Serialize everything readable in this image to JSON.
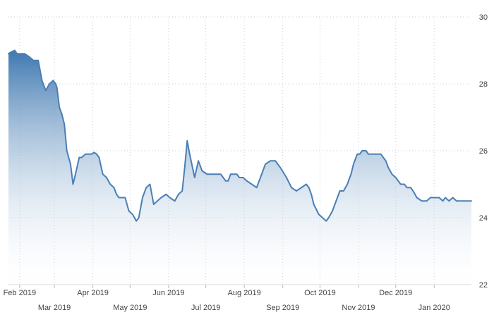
{
  "chart_data": {
    "type": "area",
    "title": "",
    "xlabel": "",
    "ylabel": "",
    "ylim": [
      22,
      30
    ],
    "y_ticks": [
      "22",
      "24",
      "26",
      "28",
      "30"
    ],
    "y_axis_position": "right",
    "grid": true,
    "legend": "none",
    "x_ticks": [
      {
        "label": "Feb 2019",
        "x": "2019-02-01",
        "row": 0
      },
      {
        "label": "Mar 2019",
        "x": "2019-03-01",
        "row": 1
      },
      {
        "label": "Apr 2019",
        "x": "2019-04-01",
        "row": 0
      },
      {
        "label": "May 2019",
        "x": "2019-05-01",
        "row": 1
      },
      {
        "label": "Jun 2019",
        "x": "2019-06-01",
        "row": 0
      },
      {
        "label": "Jul 2019",
        "x": "2019-07-01",
        "row": 1
      },
      {
        "label": "Aug 2019",
        "x": "2019-08-01",
        "row": 0
      },
      {
        "label": "Sep 2019",
        "x": "2019-09-01",
        "row": 1
      },
      {
        "label": "Oct 2019",
        "x": "2019-10-01",
        "row": 0
      },
      {
        "label": "Nov 2019",
        "x": "2019-11-01",
        "row": 1
      },
      {
        "label": "Dec 2019",
        "x": "2019-12-01",
        "row": 0
      },
      {
        "label": "Jan 2020",
        "x": "2020-01-01",
        "row": 1
      }
    ],
    "x_range": [
      "2019-01-23",
      "2020-01-31"
    ],
    "series": [
      {
        "x": [
          "2019-01-23",
          "2019-01-25",
          "2019-01-28",
          "2019-01-30",
          "2019-02-01",
          "2019-02-05",
          "2019-02-09",
          "2019-02-12",
          "2019-02-14",
          "2019-02-16",
          "2019-02-19",
          "2019-02-22",
          "2019-02-25",
          "2019-02-28",
          "2019-03-02",
          "2019-03-03",
          "2019-03-05",
          "2019-03-07",
          "2019-03-09",
          "2019-03-11",
          "2019-03-14",
          "2019-03-16",
          "2019-03-18",
          "2019-03-21",
          "2019-03-23",
          "2019-03-26",
          "2019-03-28",
          "2019-03-30",
          "2019-03-31",
          "2019-04-02",
          "2019-04-04",
          "2019-04-06",
          "2019-04-09",
          "2019-04-12",
          "2019-04-15",
          "2019-04-18",
          "2019-04-20",
          "2019-04-22",
          "2019-04-25",
          "2019-04-27",
          "2019-04-30",
          "2019-05-03",
          "2019-05-06",
          "2019-05-08",
          "2019-05-11",
          "2019-05-14",
          "2019-05-17",
          "2019-05-20",
          "2019-05-23",
          "2019-05-26",
          "2019-05-30",
          "2019-06-02",
          "2019-06-06",
          "2019-06-09",
          "2019-06-12",
          "2019-06-14",
          "2019-06-16",
          "2019-06-18",
          "2019-06-22",
          "2019-06-25",
          "2019-06-28",
          "2019-07-02",
          "2019-07-06",
          "2019-07-10",
          "2019-07-13",
          "2019-07-15",
          "2019-07-17",
          "2019-07-19",
          "2019-07-21",
          "2019-07-23",
          "2019-07-26",
          "2019-07-28",
          "2019-07-31",
          "2019-08-03",
          "2019-08-07",
          "2019-08-11",
          "2019-08-15",
          "2019-08-18",
          "2019-08-22",
          "2019-08-26",
          "2019-08-30",
          "2019-09-04",
          "2019-09-08",
          "2019-09-12",
          "2019-09-16",
          "2019-09-20",
          "2019-09-22",
          "2019-09-24",
          "2019-09-26",
          "2019-09-30",
          "2019-10-03",
          "2019-10-06",
          "2019-10-08",
          "2019-10-11",
          "2019-10-14",
          "2019-10-17",
          "2019-10-20",
          "2019-10-23",
          "2019-10-26",
          "2019-10-28",
          "2019-10-31",
          "2019-11-02",
          "2019-11-04",
          "2019-11-07",
          "2019-11-09",
          "2019-11-11",
          "2019-11-14",
          "2019-11-16",
          "2019-11-19",
          "2019-11-21",
          "2019-11-23",
          "2019-11-25",
          "2019-11-28",
          "2019-12-01",
          "2019-12-05",
          "2019-12-08",
          "2019-12-10",
          "2019-12-13",
          "2019-12-15",
          "2019-12-18",
          "2019-12-22",
          "2019-12-26",
          "2019-12-29",
          "2020-01-02",
          "2020-01-05",
          "2020-01-08",
          "2020-01-10",
          "2020-01-13",
          "2020-01-16",
          "2020-01-19",
          "2020-01-22",
          "2020-01-25",
          "2020-01-28",
          "2020-01-31"
        ],
        "values": [
          28.9,
          28.95,
          29.0,
          28.9,
          28.9,
          28.9,
          28.8,
          28.7,
          28.7,
          28.7,
          28.1,
          27.8,
          28.0,
          28.1,
          28.0,
          27.9,
          27.3,
          27.1,
          26.8,
          26.0,
          25.6,
          25.0,
          25.3,
          25.8,
          25.8,
          25.9,
          25.9,
          25.9,
          25.9,
          25.95,
          25.9,
          25.8,
          25.3,
          25.2,
          25.0,
          24.9,
          24.7,
          24.6,
          24.6,
          24.6,
          24.2,
          24.1,
          23.9,
          24.0,
          24.6,
          24.9,
          25.0,
          24.4,
          24.5,
          24.6,
          24.7,
          24.6,
          24.5,
          24.7,
          24.8,
          25.5,
          26.3,
          25.9,
          25.2,
          25.7,
          25.4,
          25.3,
          25.3,
          25.3,
          25.3,
          25.2,
          25.1,
          25.1,
          25.3,
          25.3,
          25.3,
          25.2,
          25.2,
          25.1,
          25.0,
          24.9,
          25.3,
          25.6,
          25.7,
          25.7,
          25.5,
          25.2,
          24.9,
          24.8,
          24.9,
          25.0,
          24.9,
          24.7,
          24.4,
          24.1,
          24.0,
          23.9,
          24.0,
          24.2,
          24.5,
          24.8,
          24.8,
          25.0,
          25.3,
          25.6,
          25.9,
          25.9,
          26.0,
          26.0,
          25.9,
          25.9,
          25.9,
          25.9,
          25.9,
          25.8,
          25.7,
          25.5,
          25.3,
          25.2,
          25.0,
          25.0,
          24.9,
          24.9,
          24.8,
          24.6,
          24.5,
          24.5,
          24.6,
          24.6,
          24.6,
          24.5,
          24.6,
          24.5,
          24.6,
          24.5,
          24.5,
          24.5,
          24.5,
          24.5
        ]
      }
    ],
    "colors": {
      "line": "#4a7fb5",
      "fill_top": "#3f78b0",
      "fill_bottom": "#ffffff",
      "grid": "#cfcfcf",
      "tick_text": "#444444",
      "background": "#ffffff"
    }
  }
}
